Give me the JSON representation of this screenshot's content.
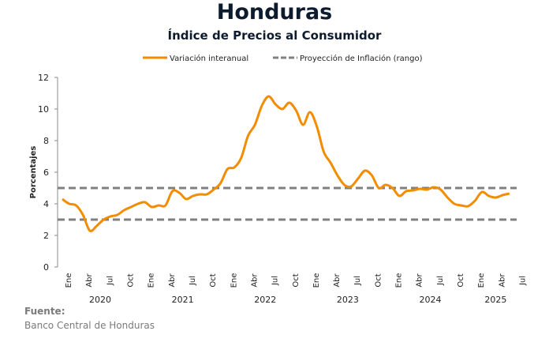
{
  "title": "Honduras",
  "subtitle": "Índice de Precios al Consumidor",
  "source_label": "Fuente:",
  "source_text": "Banco Central de Honduras",
  "chart_data": {
    "type": "line",
    "ylabel": "Porcentajes",
    "ylim": [
      0,
      12
    ],
    "yticks": [
      0,
      2,
      4,
      6,
      8,
      10,
      12
    ],
    "grid": false,
    "legend_position": "top",
    "x_start": "2020-01",
    "month_tick_labels": [
      "Ene",
      "Abr",
      "Jul",
      "Oct"
    ],
    "year_labels": [
      "2020",
      "2021",
      "2022",
      "2023",
      "2024",
      "2025"
    ],
    "series": [
      {
        "name": "Variación interanual",
        "color": "#f28c00",
        "style": "solid",
        "values": [
          4.3,
          4.0,
          3.9,
          3.3,
          2.3,
          2.6,
          3.0,
          3.2,
          3.3,
          3.6,
          3.8,
          4.0,
          4.1,
          3.8,
          3.9,
          3.9,
          4.8,
          4.7,
          4.3,
          4.5,
          4.6,
          4.6,
          4.9,
          5.3,
          6.2,
          6.3,
          6.9,
          8.3,
          9.0,
          10.2,
          10.8,
          10.3,
          10.0,
          10.4,
          9.9,
          9.0,
          9.8,
          8.9,
          7.3,
          6.6,
          5.8,
          5.2,
          5.1,
          5.6,
          6.1,
          5.8,
          5.0,
          5.2,
          5.0,
          4.5,
          4.8,
          4.85,
          4.95,
          4.9,
          5.05,
          4.9,
          4.4,
          4.0,
          3.9,
          3.85,
          4.2,
          4.75,
          4.5,
          4.4,
          4.55,
          4.65
        ]
      },
      {
        "name": "Proyección de Inflación (rango)",
        "color": "#808080",
        "style": "dashed",
        "band": [
          3,
          5
        ]
      }
    ]
  }
}
